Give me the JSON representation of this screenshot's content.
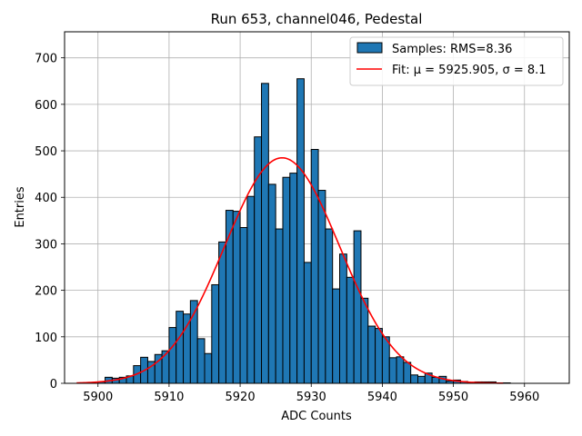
{
  "chart_data": {
    "type": "bar",
    "title": "Run 653, channel046, Pedestal",
    "xlabel": "ADC Counts",
    "ylabel": "Entries",
    "xlim": [
      5895.3,
      5966.3
    ],
    "ylim": [
      0,
      756
    ],
    "xticks": [
      5900,
      5910,
      5920,
      5930,
      5940,
      5950,
      5960
    ],
    "yticks": [
      0,
      100,
      200,
      300,
      400,
      500,
      600,
      700
    ],
    "grid": true,
    "legend_position": "top-right",
    "colors": {
      "bars": "#1f77b4",
      "bar_edge": "#000000",
      "fit": "#ff0000"
    },
    "series": [
      {
        "name": "Samples: RMS=8.36",
        "type": "histogram",
        "bin_width": 1,
        "bins_start": [
          5897,
          5898,
          5899,
          5900,
          5901,
          5902,
          5903,
          5904,
          5905,
          5906,
          5907,
          5908,
          5909,
          5910,
          5911,
          5912,
          5913,
          5914,
          5915,
          5916,
          5917,
          5918,
          5919,
          5920,
          5921,
          5922,
          5923,
          5924,
          5925,
          5926,
          5927,
          5928,
          5929,
          5930,
          5931,
          5932,
          5933,
          5934,
          5935,
          5936,
          5937,
          5938,
          5939,
          5940,
          5941,
          5942,
          5943,
          5944,
          5945,
          5946,
          5947,
          5948,
          5949,
          5950,
          5951,
          5952,
          5953,
          5954,
          5955,
          5956,
          5957,
          5958,
          5959,
          5960,
          5961,
          5962,
          5963
        ],
        "values": [
          0,
          0,
          0,
          3,
          13,
          11,
          13,
          16,
          38,
          56,
          47,
          62,
          70,
          120,
          155,
          149,
          178,
          96,
          64,
          212,
          304,
          372,
          370,
          335,
          402,
          530,
          645,
          428,
          332,
          443,
          452,
          655,
          260,
          503,
          415,
          332,
          203,
          278,
          228,
          328,
          183,
          123,
          118,
          100,
          55,
          57,
          45,
          18,
          15,
          22,
          13,
          15,
          5,
          7,
          4,
          2,
          3,
          3,
          3,
          1,
          1,
          0,
          0,
          0,
          0,
          0,
          0
        ]
      },
      {
        "name": "Fit: μ = 5925.905, σ = 8.1",
        "type": "line",
        "function": "gaussian",
        "mu": 5925.905,
        "sigma": 8.1,
        "amplitude": 485,
        "x_range": [
          5897,
          5957
        ]
      }
    ]
  }
}
